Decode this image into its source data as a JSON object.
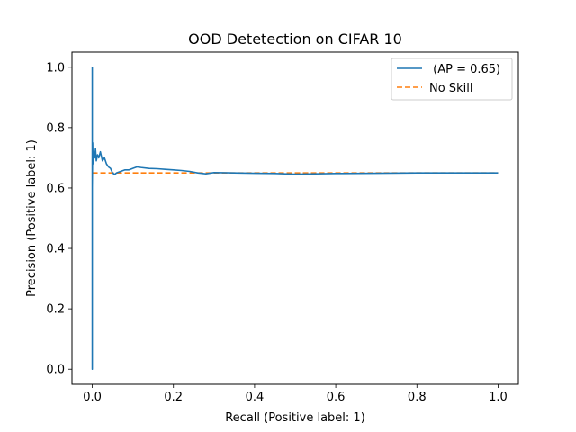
{
  "chart_data": {
    "type": "line",
    "title": "OOD Detetection on CIFAR 10",
    "xlabel": "Recall (Positive label: 1)",
    "ylabel": "Precision (Positive label: 1)",
    "xlim": [
      -0.05,
      1.05
    ],
    "ylim": [
      -0.05,
      1.05
    ],
    "xticks": [
      0.0,
      0.2,
      0.4,
      0.6,
      0.8,
      1.0
    ],
    "xtick_labels": [
      "0.0",
      "0.2",
      "0.4",
      "0.6",
      "0.8",
      "1.0"
    ],
    "yticks": [
      0.0,
      0.2,
      0.4,
      0.6,
      0.8,
      1.0
    ],
    "ytick_labels": [
      "0.0",
      "0.2",
      "0.4",
      "0.6",
      "0.8",
      "1.0"
    ],
    "grid": false,
    "legend_position": "top-right",
    "series": [
      {
        "name": " (AP = 0.65)",
        "color": "#1f77b4",
        "style": "solid",
        "points": [
          [
            0.0,
            1.0
          ],
          [
            0.0,
            0.0
          ],
          [
            0.0,
            0.6
          ],
          [
            0.001,
            0.75
          ],
          [
            0.002,
            0.68
          ],
          [
            0.004,
            0.72
          ],
          [
            0.006,
            0.7
          ],
          [
            0.008,
            0.73
          ],
          [
            0.01,
            0.69
          ],
          [
            0.013,
            0.71
          ],
          [
            0.016,
            0.7
          ],
          [
            0.02,
            0.72
          ],
          [
            0.025,
            0.69
          ],
          [
            0.03,
            0.7
          ],
          [
            0.035,
            0.68
          ],
          [
            0.04,
            0.67
          ],
          [
            0.045,
            0.665
          ],
          [
            0.05,
            0.65
          ],
          [
            0.055,
            0.645
          ],
          [
            0.06,
            0.65
          ],
          [
            0.07,
            0.655
          ],
          [
            0.08,
            0.66
          ],
          [
            0.09,
            0.66
          ],
          [
            0.1,
            0.665
          ],
          [
            0.11,
            0.67
          ],
          [
            0.12,
            0.668
          ],
          [
            0.14,
            0.665
          ],
          [
            0.16,
            0.664
          ],
          [
            0.18,
            0.662
          ],
          [
            0.2,
            0.66
          ],
          [
            0.22,
            0.658
          ],
          [
            0.24,
            0.655
          ],
          [
            0.26,
            0.65
          ],
          [
            0.28,
            0.647
          ],
          [
            0.3,
            0.651
          ],
          [
            0.35,
            0.65
          ],
          [
            0.4,
            0.649
          ],
          [
            0.45,
            0.648
          ],
          [
            0.5,
            0.646
          ],
          [
            0.55,
            0.647
          ],
          [
            0.6,
            0.648
          ],
          [
            0.7,
            0.649
          ],
          [
            0.8,
            0.65
          ],
          [
            0.9,
            0.65
          ],
          [
            1.0,
            0.65
          ]
        ]
      },
      {
        "name": "No Skill",
        "color": "#ff7f0e",
        "style": "dashed",
        "points": [
          [
            0.0,
            0.65
          ],
          [
            1.0,
            0.65
          ]
        ]
      }
    ]
  }
}
